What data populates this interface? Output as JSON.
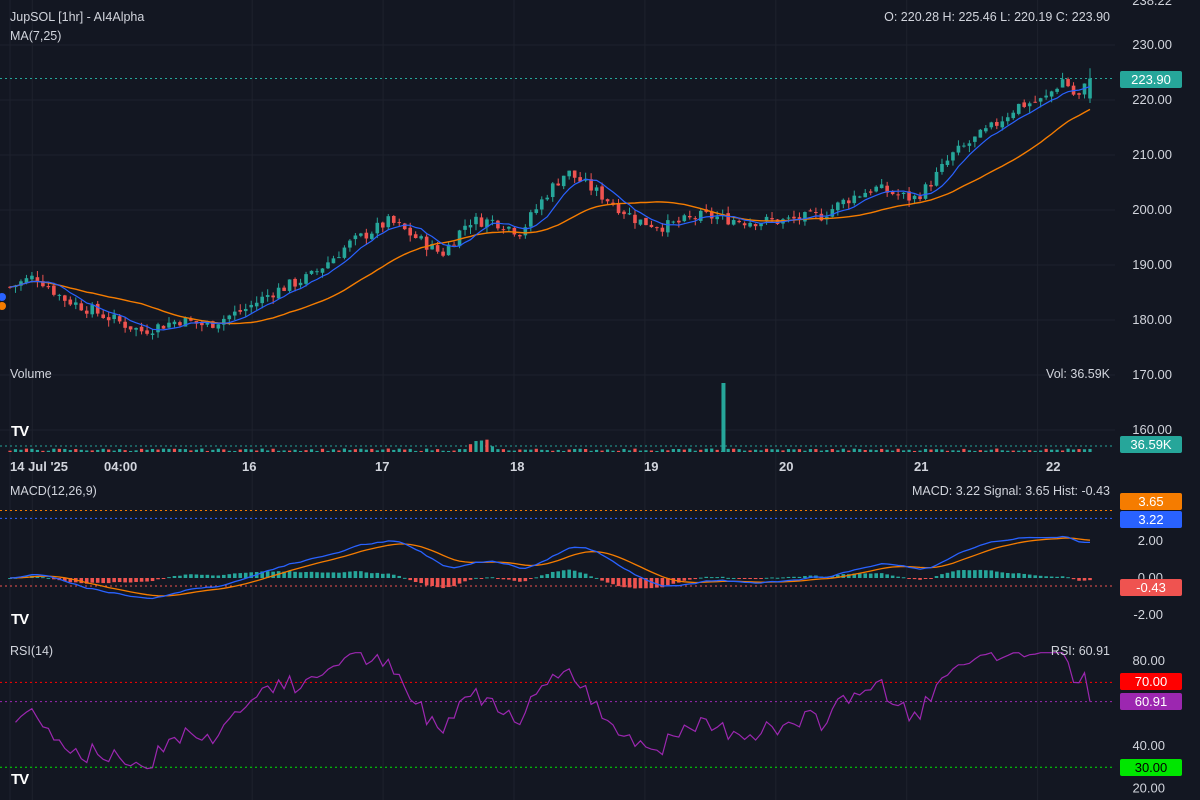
{
  "header": {
    "title": "JupSOL [1hr] - AI4Alpha",
    "ma_label": "MA(7,25)",
    "ohlc": "O: 220.28 H: 225.46 L: 220.19 C: 223.90"
  },
  "volume_panel": {
    "label": "Volume",
    "readout": "Vol: 36.59K",
    "last_tag": "36.59K"
  },
  "macd_panel": {
    "label": "MACD(12,26,9)",
    "readout": "MACD: 3.22 Signal: 3.65 Hist: -0.43",
    "tags": [
      "3.65",
      "3.22",
      "-0.43"
    ]
  },
  "rsi_panel": {
    "label": "RSI(14)",
    "readout": "RSI: 60.91",
    "tags": [
      "70.00",
      "60.91",
      "30.00"
    ]
  },
  "price_tag": "223.90",
  "logo": "TV",
  "colors": {
    "bg": "#131722",
    "up": "#26a69a",
    "down": "#ef5350",
    "ma_fast": "#2962ff",
    "ma_slow": "#f57c00",
    "rsi": "#9c27b0",
    "macd": "#2962ff",
    "signal": "#f57c00"
  },
  "chart_data": {
    "type": "candlestick",
    "x_ticks": [
      "14 Jul '25",
      "04:00",
      "16",
      "17",
      "18",
      "19",
      "20",
      "21",
      "22"
    ],
    "price_axis": {
      "ticks": [
        "238.22",
        "230.00",
        "220.00",
        "210.00",
        "200.00",
        "190.00",
        "180.00",
        "170.00",
        "160.00"
      ],
      "ylim": [
        158,
        238.22
      ]
    },
    "close_path": [
      {
        "day": 14.0,
        "close": 186
      },
      {
        "day": 14.2,
        "close": 188
      },
      {
        "day": 14.4,
        "close": 184
      },
      {
        "day": 14.7,
        "close": 181
      },
      {
        "day": 15.0,
        "close": 178
      },
      {
        "day": 15.3,
        "close": 180
      },
      {
        "day": 15.5,
        "close": 179
      },
      {
        "day": 15.8,
        "close": 182
      },
      {
        "day": 16.0,
        "close": 185
      },
      {
        "day": 16.3,
        "close": 188
      },
      {
        "day": 16.6,
        "close": 194
      },
      {
        "day": 16.9,
        "close": 198
      },
      {
        "day": 17.1,
        "close": 195
      },
      {
        "day": 17.3,
        "close": 192
      },
      {
        "day": 17.5,
        "close": 198
      },
      {
        "day": 17.7,
        "close": 198
      },
      {
        "day": 17.9,
        "close": 196
      },
      {
        "day": 18.1,
        "close": 203
      },
      {
        "day": 18.25,
        "close": 207
      },
      {
        "day": 18.5,
        "close": 203
      },
      {
        "day": 18.8,
        "close": 198
      },
      {
        "day": 19.0,
        "close": 197
      },
      {
        "day": 19.3,
        "close": 199
      },
      {
        "day": 19.6,
        "close": 198
      },
      {
        "day": 19.9,
        "close": 198
      },
      {
        "day": 20.2,
        "close": 199
      },
      {
        "day": 20.4,
        "close": 202
      },
      {
        "day": 20.6,
        "close": 204
      },
      {
        "day": 20.9,
        "close": 202
      },
      {
        "day": 21.0,
        "close": 204
      },
      {
        "day": 21.2,
        "close": 210
      },
      {
        "day": 21.5,
        "close": 215
      },
      {
        "day": 21.7,
        "close": 219
      },
      {
        "day": 21.9,
        "close": 220
      },
      {
        "day": 22.05,
        "close": 224
      },
      {
        "day": 22.15,
        "close": 220
      },
      {
        "day": 22.25,
        "close": 223.9
      }
    ],
    "volume_spike": {
      "day": 19.45,
      "value": "spike"
    },
    "macd": {
      "yticks": [
        "2.00",
        "0.00",
        "-2.00"
      ],
      "ylim": [
        -2.8,
        4.5
      ],
      "last_macd": 3.22,
      "last_signal": 3.65,
      "last_hist": -0.43
    },
    "rsi": {
      "yticks": [
        "80.00",
        "40.00",
        "20.00"
      ],
      "ylim": [
        17,
        87
      ],
      "levels": [
        70,
        30
      ],
      "last": 60.91
    }
  }
}
